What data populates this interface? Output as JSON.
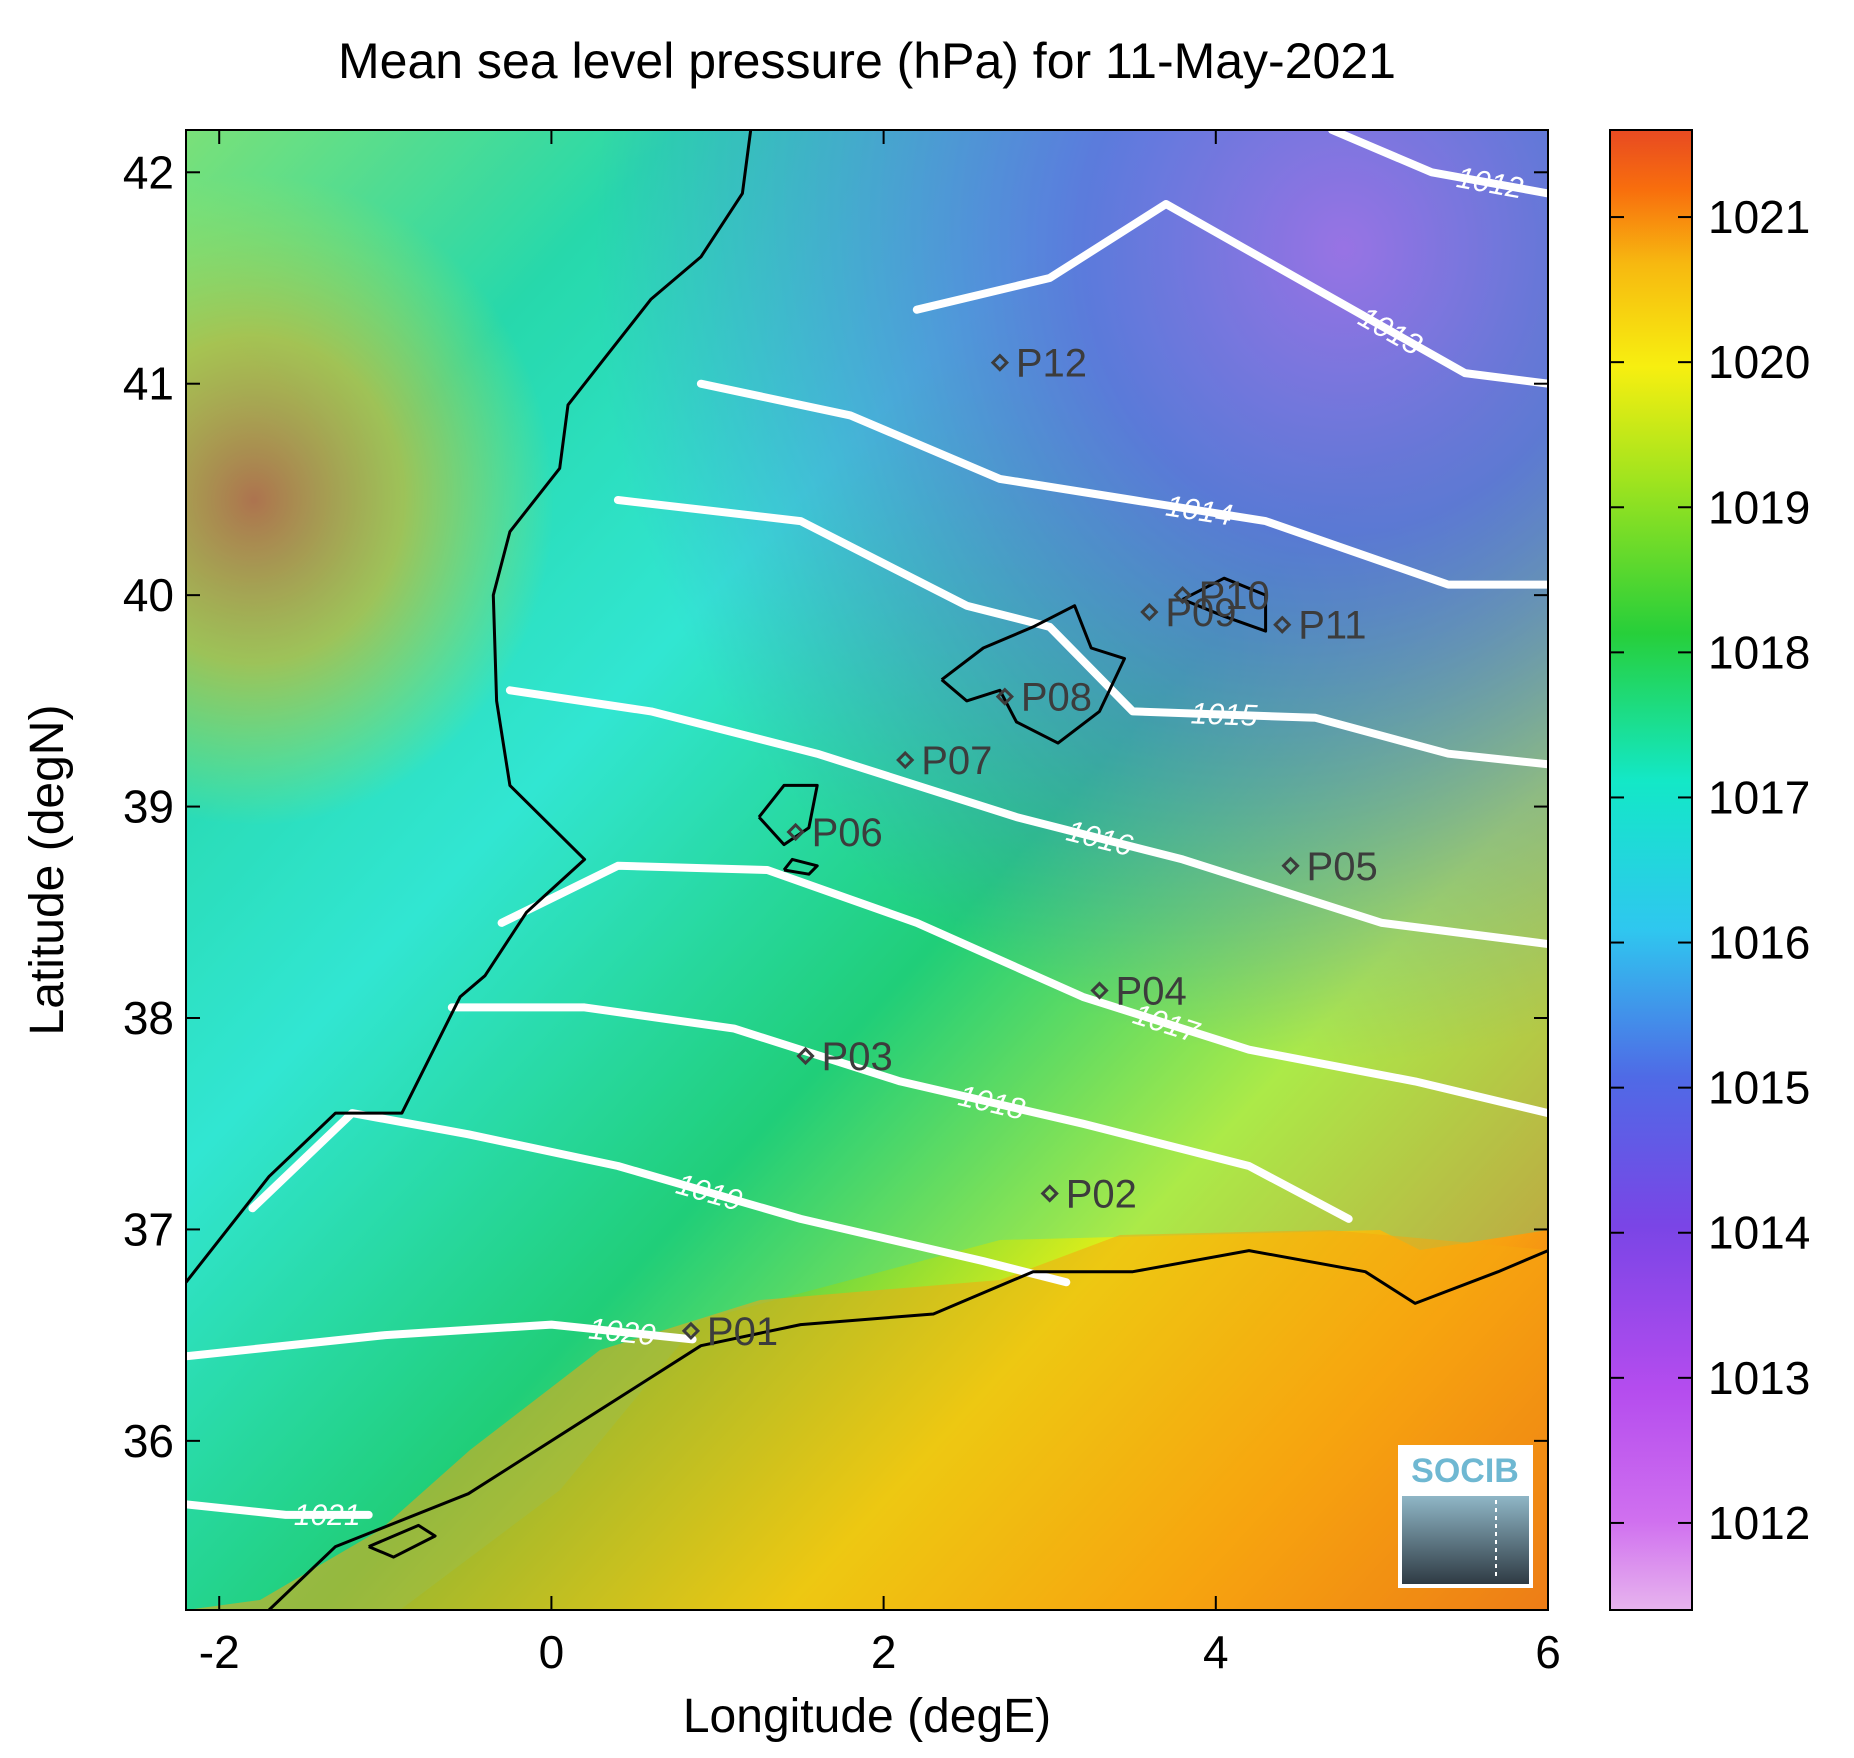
{
  "title": "Mean sea level pressure (hPa) for 11-May-2021",
  "axes": {
    "xlabel": "Longitude (degE)",
    "ylabel": "Latitude (degN)",
    "xlim": [
      -2.2,
      6
    ],
    "ylim": [
      35.2,
      42.2
    ],
    "xticks": [
      -2,
      0,
      2,
      4,
      6
    ],
    "xtick_labels": [
      "-2",
      "0",
      "2",
      "4",
      "6"
    ],
    "yticks": [
      36,
      37,
      38,
      39,
      40,
      41,
      42
    ],
    "ytick_labels": [
      "36",
      "37",
      "38",
      "39",
      "40",
      "41",
      "42"
    ]
  },
  "colorbar": {
    "range": [
      1011.4,
      1021.6
    ],
    "ticks": [
      1012,
      1013,
      1014,
      1015,
      1016,
      1017,
      1018,
      1019,
      1020,
      1021
    ],
    "tick_labels": [
      "1012",
      "1013",
      "1014",
      "1015",
      "1016",
      "1017",
      "1018",
      "1019",
      "1020",
      "1021"
    ],
    "colors": [
      "#e7b4ee",
      "#c84aef",
      "#7a45e6",
      "#4f6ae6",
      "#2fc7ef",
      "#13e8c7",
      "#27cf3a",
      "#9ce31f",
      "#f7ef10",
      "#f7b810",
      "#f86e0d",
      "#e84a22"
    ]
  },
  "stations": [
    {
      "id": "P01",
      "lon": 0.84,
      "lat": 36.52
    },
    {
      "id": "P02",
      "lon": 3.0,
      "lat": 37.17
    },
    {
      "id": "P03",
      "lon": 1.53,
      "lat": 37.82
    },
    {
      "id": "P04",
      "lon": 3.3,
      "lat": 38.13
    },
    {
      "id": "P05",
      "lon": 4.45,
      "lat": 38.72
    },
    {
      "id": "P06",
      "lon": 1.47,
      "lat": 38.88
    },
    {
      "id": "P07",
      "lon": 2.13,
      "lat": 39.22
    },
    {
      "id": "P08",
      "lon": 2.73,
      "lat": 39.52
    },
    {
      "id": "P09",
      "lon": 3.6,
      "lat": 39.92
    },
    {
      "id": "P10",
      "lon": 3.8,
      "lat": 40.0
    },
    {
      "id": "P11",
      "lon": 4.4,
      "lat": 39.86
    },
    {
      "id": "P12",
      "lon": 2.7,
      "lat": 41.1
    }
  ],
  "contours": [
    {
      "level": 1012,
      "label": "1012",
      "points": [
        [
          4.7,
          42.2
        ],
        [
          5.3,
          42.0
        ],
        [
          6.0,
          41.9
        ]
      ]
    },
    {
      "level": 1013,
      "label": "1013",
      "points": [
        [
          2.2,
          41.35
        ],
        [
          3.0,
          41.5
        ],
        [
          3.7,
          41.85
        ],
        [
          4.6,
          41.45
        ],
        [
          5.5,
          41.05
        ],
        [
          6.0,
          41.0
        ]
      ]
    },
    {
      "level": 1014,
      "label": "1014",
      "points": [
        [
          0.9,
          41.0
        ],
        [
          1.8,
          40.85
        ],
        [
          2.7,
          40.55
        ],
        [
          3.5,
          40.45
        ],
        [
          4.3,
          40.35
        ],
        [
          5.4,
          40.05
        ],
        [
          6.0,
          40.05
        ]
      ]
    },
    {
      "level": 1015,
      "label": "1015",
      "points": [
        [
          0.4,
          40.45
        ],
        [
          1.5,
          40.35
        ],
        [
          2.5,
          39.95
        ],
        [
          3.0,
          39.85
        ],
        [
          3.5,
          39.45
        ],
        [
          4.6,
          39.42
        ],
        [
          5.4,
          39.25
        ],
        [
          6.0,
          39.2
        ]
      ]
    },
    {
      "level": 1016,
      "label": "1016",
      "points": [
        [
          -0.25,
          39.55
        ],
        [
          0.6,
          39.45
        ],
        [
          1.6,
          39.25
        ],
        [
          2.8,
          38.95
        ],
        [
          3.8,
          38.75
        ],
        [
          5.0,
          38.45
        ],
        [
          6.0,
          38.35
        ]
      ]
    },
    {
      "level": 1017,
      "label": "1017",
      "points": [
        [
          -0.3,
          38.45
        ],
        [
          0.4,
          38.72
        ],
        [
          1.3,
          38.7
        ],
        [
          2.2,
          38.45
        ],
        [
          3.2,
          38.1
        ],
        [
          4.2,
          37.85
        ],
        [
          5.2,
          37.7
        ],
        [
          6.0,
          37.55
        ]
      ]
    },
    {
      "level": 1018,
      "label": "1018",
      "points": [
        [
          -0.6,
          38.05
        ],
        [
          0.2,
          38.05
        ],
        [
          1.1,
          37.95
        ],
        [
          2.1,
          37.7
        ],
        [
          3.2,
          37.5
        ],
        [
          4.2,
          37.3
        ],
        [
          4.8,
          37.05
        ]
      ]
    },
    {
      "level": 1019,
      "label": "1019",
      "points": [
        [
          -1.8,
          37.1
        ],
        [
          -1.2,
          37.55
        ],
        [
          -0.5,
          37.45
        ],
        [
          0.4,
          37.3
        ],
        [
          1.5,
          37.05
        ],
        [
          2.6,
          36.85
        ],
        [
          3.1,
          36.75
        ]
      ]
    },
    {
      "level": 1020,
      "label": "1020",
      "points": [
        [
          -2.2,
          36.4
        ],
        [
          -1.0,
          36.5
        ],
        [
          0.0,
          36.55
        ],
        [
          0.85,
          36.48
        ]
      ]
    },
    {
      "level": 1021,
      "label": "1021",
      "points": [
        [
          -2.2,
          35.7
        ],
        [
          -1.6,
          35.65
        ],
        [
          -1.1,
          35.65
        ]
      ]
    }
  ],
  "logo": {
    "text": "SOCIB"
  }
}
